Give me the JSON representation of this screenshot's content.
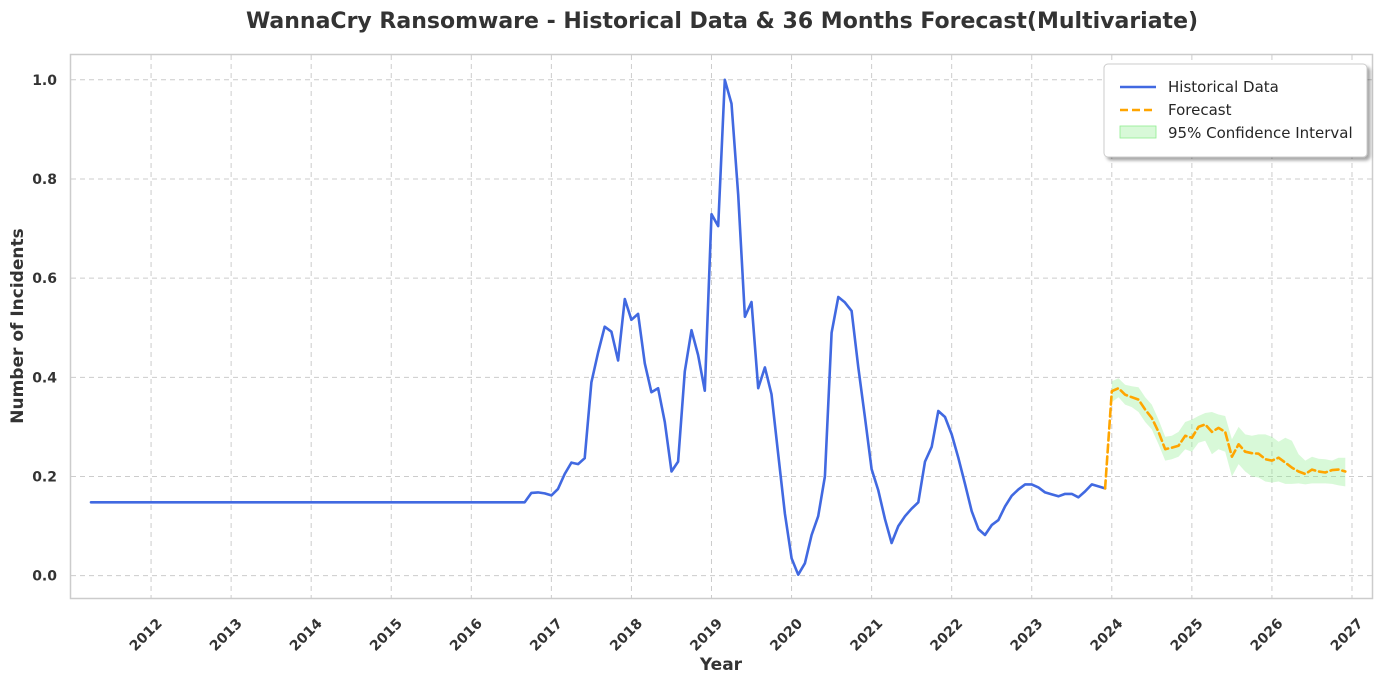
{
  "chart_data": {
    "type": "line",
    "title": "WannaCry Ransomware - Historical Data & 36 Months Forecast(Multivariate)",
    "xlabel": "Year",
    "ylabel": "Number of Incidents",
    "x_ticks": [
      "2012",
      "2013",
      "2014",
      "2015",
      "2016",
      "2017",
      "2018",
      "2019",
      "2020",
      "2021",
      "2022",
      "2023",
      "2024",
      "2025",
      "2026",
      "2027"
    ],
    "y_ticks": [
      "0.0",
      "0.2",
      "0.4",
      "0.6",
      "0.8",
      "1.0"
    ],
    "xlim": [
      "2011-01",
      "2027-04"
    ],
    "ylim": [
      -0.045,
      1.05
    ],
    "grid": true,
    "legend_position": "top-right",
    "legend": [
      "Historical Data",
      "Forecast",
      "95% Confidence Interval"
    ],
    "colors": {
      "historical": "#4169e1",
      "forecast": "#ffa500",
      "confidence": "#90ee90"
    },
    "series": [
      {
        "name": "Historical Data",
        "style": "solid",
        "points": [
          [
            "2011-04",
            0.148
          ],
          [
            "2016-09",
            0.148
          ],
          [
            "2016-10",
            0.167
          ],
          [
            "2016-11",
            0.168
          ],
          [
            "2016-12",
            0.166
          ],
          [
            "2017-01",
            0.162
          ],
          [
            "2017-02",
            0.175
          ],
          [
            "2017-03",
            0.205
          ],
          [
            "2017-04",
            0.228
          ],
          [
            "2017-05",
            0.225
          ],
          [
            "2017-06",
            0.237
          ],
          [
            "2017-07",
            0.39
          ],
          [
            "2017-08",
            0.45
          ],
          [
            "2017-09",
            0.502
          ],
          [
            "2017-10",
            0.492
          ],
          [
            "2017-11",
            0.434
          ],
          [
            "2017-12",
            0.558
          ],
          [
            "2018-01",
            0.516
          ],
          [
            "2018-02",
            0.528
          ],
          [
            "2018-03",
            0.428
          ],
          [
            "2018-04",
            0.37
          ],
          [
            "2018-05",
            0.378
          ],
          [
            "2018-06",
            0.31
          ],
          [
            "2018-07",
            0.21
          ],
          [
            "2018-08",
            0.23
          ],
          [
            "2018-09",
            0.412
          ],
          [
            "2018-10",
            0.495
          ],
          [
            "2018-11",
            0.445
          ],
          [
            "2018-12",
            0.373
          ],
          [
            "2019-01",
            0.729
          ],
          [
            "2019-02",
            0.705
          ],
          [
            "2019-03",
            1.0
          ],
          [
            "2019-04",
            0.952
          ],
          [
            "2019-05",
            0.768
          ],
          [
            "2019-06",
            0.522
          ],
          [
            "2019-07",
            0.552
          ],
          [
            "2019-08",
            0.378
          ],
          [
            "2019-09",
            0.42
          ],
          [
            "2019-10",
            0.366
          ],
          [
            "2019-11",
            0.245
          ],
          [
            "2019-12",
            0.125
          ],
          [
            "2020-01",
            0.035
          ],
          [
            "2020-02",
            0.002
          ],
          [
            "2020-03",
            0.025
          ],
          [
            "2020-04",
            0.082
          ],
          [
            "2020-05",
            0.12
          ],
          [
            "2020-06",
            0.2
          ],
          [
            "2020-07",
            0.49
          ],
          [
            "2020-08",
            0.562
          ],
          [
            "2020-09",
            0.551
          ],
          [
            "2020-10",
            0.534
          ],
          [
            "2020-11",
            0.42
          ],
          [
            "2020-12",
            0.32
          ],
          [
            "2021-01",
            0.215
          ],
          [
            "2021-02",
            0.172
          ],
          [
            "2021-03",
            0.114
          ],
          [
            "2021-04",
            0.066
          ],
          [
            "2021-05",
            0.1
          ],
          [
            "2021-06",
            0.12
          ],
          [
            "2021-07",
            0.135
          ],
          [
            "2021-08",
            0.148
          ],
          [
            "2021-09",
            0.23
          ],
          [
            "2021-10",
            0.26
          ],
          [
            "2021-11",
            0.332
          ],
          [
            "2021-12",
            0.32
          ],
          [
            "2022-01",
            0.285
          ],
          [
            "2022-02",
            0.238
          ],
          [
            "2022-03",
            0.185
          ],
          [
            "2022-04",
            0.13
          ],
          [
            "2022-05",
            0.094
          ],
          [
            "2022-06",
            0.082
          ],
          [
            "2022-07",
            0.102
          ],
          [
            "2022-08",
            0.112
          ],
          [
            "2022-09",
            0.14
          ],
          [
            "2022-10",
            0.161
          ],
          [
            "2022-11",
            0.174
          ],
          [
            "2022-12",
            0.184
          ],
          [
            "2023-01",
            0.184
          ],
          [
            "2023-02",
            0.178
          ],
          [
            "2023-03",
            0.168
          ],
          [
            "2023-04",
            0.164
          ],
          [
            "2023-05",
            0.16
          ],
          [
            "2023-06",
            0.165
          ],
          [
            "2023-07",
            0.165
          ],
          [
            "2023-08",
            0.158
          ],
          [
            "2023-09",
            0.17
          ],
          [
            "2023-10",
            0.184
          ],
          [
            "2023-11",
            0.18
          ],
          [
            "2023-12",
            0.176
          ]
        ]
      },
      {
        "name": "Forecast",
        "style": "dashed",
        "points": [
          [
            "2023-12",
            0.176
          ],
          [
            "2024-01",
            0.372
          ],
          [
            "2024-02",
            0.378
          ],
          [
            "2024-03",
            0.365
          ],
          [
            "2024-04",
            0.36
          ],
          [
            "2024-05",
            0.355
          ],
          [
            "2024-06",
            0.335
          ],
          [
            "2024-07",
            0.318
          ],
          [
            "2024-08",
            0.29
          ],
          [
            "2024-09",
            0.255
          ],
          [
            "2024-10",
            0.258
          ],
          [
            "2024-11",
            0.262
          ],
          [
            "2024-12",
            0.282
          ],
          [
            "2025-01",
            0.278
          ],
          [
            "2025-02",
            0.3
          ],
          [
            "2025-03",
            0.305
          ],
          [
            "2025-04",
            0.29
          ],
          [
            "2025-05",
            0.298
          ],
          [
            "2025-06",
            0.29
          ],
          [
            "2025-07",
            0.24
          ],
          [
            "2025-08",
            0.265
          ],
          [
            "2025-09",
            0.25
          ],
          [
            "2025-10",
            0.247
          ],
          [
            "2025-11",
            0.246
          ],
          [
            "2025-12",
            0.235
          ],
          [
            "2026-01",
            0.232
          ],
          [
            "2026-02",
            0.238
          ],
          [
            "2026-03",
            0.228
          ],
          [
            "2026-04",
            0.218
          ],
          [
            "2026-05",
            0.21
          ],
          [
            "2026-06",
            0.205
          ],
          [
            "2026-07",
            0.214
          ],
          [
            "2026-08",
            0.21
          ],
          [
            "2026-09",
            0.208
          ],
          [
            "2026-10",
            0.213
          ],
          [
            "2026-11",
            0.214
          ],
          [
            "2026-12",
            0.21
          ]
        ]
      }
    ],
    "confidence_interval": {
      "name": "95% Confidence Interval",
      "points": [
        [
          "2024-01",
          0.35,
          0.392
        ],
        [
          "2024-02",
          0.36,
          0.398
        ],
        [
          "2024-03",
          0.345,
          0.385
        ],
        [
          "2024-04",
          0.34,
          0.382
        ],
        [
          "2024-05",
          0.33,
          0.38
        ],
        [
          "2024-06",
          0.31,
          0.36
        ],
        [
          "2024-07",
          0.295,
          0.345
        ],
        [
          "2024-08",
          0.265,
          0.315
        ],
        [
          "2024-09",
          0.232,
          0.28
        ],
        [
          "2024-10",
          0.235,
          0.282
        ],
        [
          "2024-11",
          0.24,
          0.29
        ],
        [
          "2024-12",
          0.255,
          0.31
        ],
        [
          "2025-01",
          0.25,
          0.315
        ],
        [
          "2025-02",
          0.268,
          0.322
        ],
        [
          "2025-03",
          0.272,
          0.328
        ],
        [
          "2025-04",
          0.245,
          0.33
        ],
        [
          "2025-05",
          0.255,
          0.325
        ],
        [
          "2025-06",
          0.25,
          0.322
        ],
        [
          "2025-07",
          0.2,
          0.275
        ],
        [
          "2025-08",
          0.225,
          0.3
        ],
        [
          "2025-09",
          0.21,
          0.285
        ],
        [
          "2025-10",
          0.2,
          0.282
        ],
        [
          "2025-11",
          0.198,
          0.285
        ],
        [
          "2025-12",
          0.19,
          0.285
        ],
        [
          "2026-01",
          0.188,
          0.28
        ],
        [
          "2026-02",
          0.19,
          0.27
        ],
        [
          "2026-03",
          0.185,
          0.278
        ],
        [
          "2026-04",
          0.185,
          0.272
        ],
        [
          "2026-05",
          0.186,
          0.245
        ],
        [
          "2026-06",
          0.184,
          0.232
        ],
        [
          "2026-07",
          0.186,
          0.24
        ],
        [
          "2026-08",
          0.186,
          0.236
        ],
        [
          "2026-09",
          0.186,
          0.235
        ],
        [
          "2026-10",
          0.185,
          0.232
        ],
        [
          "2026-11",
          0.182,
          0.238
        ],
        [
          "2026-12",
          0.18,
          0.238
        ]
      ]
    }
  }
}
